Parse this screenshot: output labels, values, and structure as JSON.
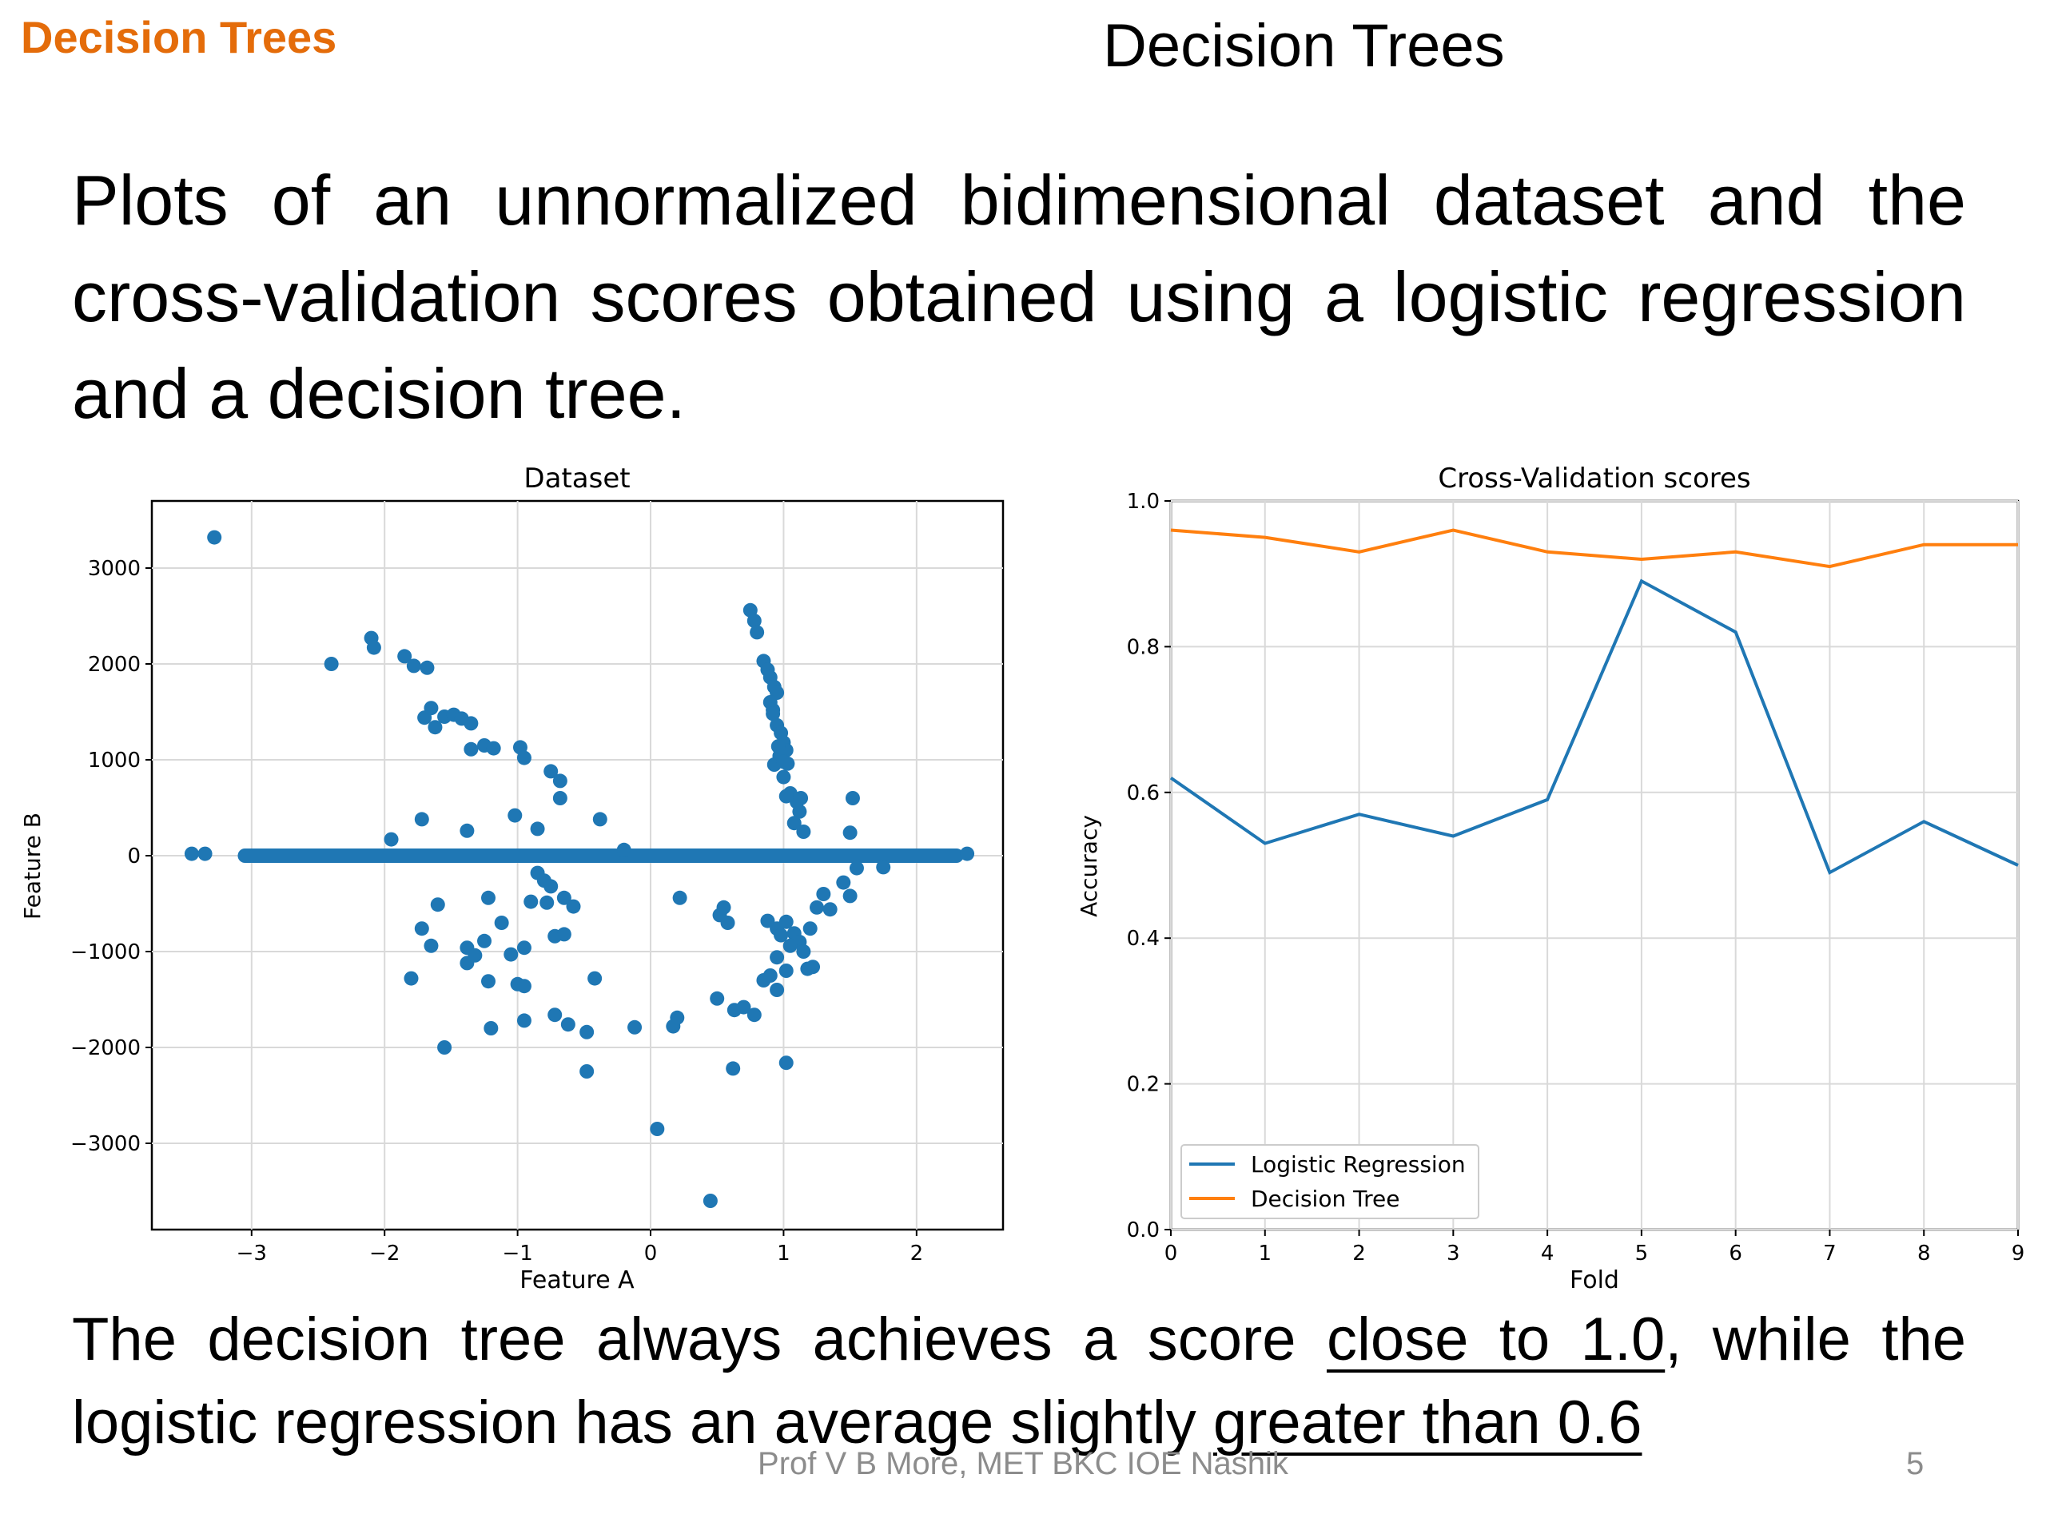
{
  "header": {
    "corner_label": "Decision Trees",
    "title": "Decision Trees"
  },
  "intro_text": "Plots of an unnormalized bidimensional dataset and the cross-validation scores obtained using a logistic regression and a decision tree.",
  "conclusion": {
    "part1": "The decision tree always achieves a score ",
    "underline1": "close to 1.0",
    "part2": ", while the logistic regression has an average slightly ",
    "underline2": "greater than 0.6"
  },
  "footer": {
    "credit": "Prof V B More, MET BKC IOE Nashik",
    "page_number": "5"
  },
  "colors": {
    "blue": "#1f77b4",
    "orange": "#ff7f0e"
  },
  "chart_data": [
    {
      "type": "scatter",
      "title": "Dataset",
      "xlabel": "Feature A",
      "ylabel": "Feature B",
      "xlim": [
        -3.75,
        2.65
      ],
      "ylim": [
        -3900,
        3700
      ],
      "xticks": [
        -3,
        -2,
        -1,
        0,
        1,
        2
      ],
      "xtick_labels": [
        "−3",
        "−2",
        "−1",
        "0",
        "1",
        "2"
      ],
      "yticks": [
        -3000,
        -2000,
        -1000,
        0,
        1000,
        2000,
        3000
      ],
      "ytick_labels": [
        "−3000",
        "−2000",
        "−1000",
        "0",
        "1000",
        "2000",
        "3000"
      ],
      "grid": true,
      "band": {
        "x_from": -3.05,
        "x_to": 2.3,
        "y": 0
      },
      "points": [
        [
          -3.28,
          3320
        ],
        [
          -2.4,
          2000
        ],
        [
          -2.1,
          2270
        ],
        [
          -2.08,
          2170
        ],
        [
          -1.85,
          2080
        ],
        [
          -1.78,
          1980
        ],
        [
          -1.68,
          1960
        ],
        [
          -1.7,
          1440
        ],
        [
          -1.65,
          1540
        ],
        [
          -1.62,
          1340
        ],
        [
          -1.55,
          1450
        ],
        [
          -1.48,
          1470
        ],
        [
          -1.42,
          1430
        ],
        [
          -1.35,
          1380
        ],
        [
          -1.35,
          1110
        ],
        [
          -1.25,
          1150
        ],
        [
          -1.18,
          1120
        ],
        [
          -0.98,
          1130
        ],
        [
          -0.95,
          1020
        ],
        [
          -0.75,
          880
        ],
        [
          -0.68,
          780
        ],
        [
          -0.68,
          600
        ],
        [
          -1.72,
          380
        ],
        [
          -1.95,
          170
        ],
        [
          -1.38,
          260
        ],
        [
          -1.02,
          420
        ],
        [
          -0.85,
          280
        ],
        [
          -0.38,
          380
        ],
        [
          -0.2,
          60
        ],
        [
          -0.85,
          -180
        ],
        [
          -0.8,
          -260
        ],
        [
          -0.75,
          -320
        ],
        [
          -0.9,
          -480
        ],
        [
          -0.78,
          -490
        ],
        [
          -0.65,
          -440
        ],
        [
          -0.58,
          -530
        ],
        [
          -1.6,
          -510
        ],
        [
          -1.72,
          -760
        ],
        [
          -1.65,
          -940
        ],
        [
          -1.38,
          -960
        ],
        [
          -1.38,
          -1120
        ],
        [
          -1.32,
          -1040
        ],
        [
          -1.22,
          -440
        ],
        [
          -1.12,
          -700
        ],
        [
          -1.05,
          -1030
        ],
        [
          -0.95,
          -960
        ],
        [
          -0.72,
          -840
        ],
        [
          -0.65,
          -820
        ],
        [
          -1.25,
          -890
        ],
        [
          -1.22,
          -1310
        ],
        [
          -1.0,
          -1340
        ],
        [
          -0.95,
          -1360
        ],
        [
          -0.42,
          -1280
        ],
        [
          -1.8,
          -1280
        ],
        [
          -1.2,
          -1800
        ],
        [
          -0.95,
          -1720
        ],
        [
          -0.72,
          -1660
        ],
        [
          -0.62,
          -1760
        ],
        [
          -0.48,
          -1840
        ],
        [
          -0.12,
          -1790
        ],
        [
          -1.55,
          -2000
        ],
        [
          -0.48,
          -2250
        ],
        [
          0.17,
          -1780
        ],
        [
          0.2,
          -1690
        ],
        [
          0.05,
          -2850
        ],
        [
          0.45,
          -3600
        ],
        [
          0.22,
          -440
        ],
        [
          0.52,
          -620
        ],
        [
          0.55,
          -540
        ],
        [
          0.58,
          -700
        ],
        [
          0.5,
          -1490
        ],
        [
          0.63,
          -1610
        ],
        [
          0.7,
          -1580
        ],
        [
          0.78,
          -1660
        ],
        [
          0.62,
          -2220
        ],
        [
          1.02,
          -2160
        ],
        [
          0.85,
          -1300
        ],
        [
          0.9,
          -1250
        ],
        [
          0.95,
          -1400
        ],
        [
          0.88,
          -680
        ],
        [
          0.95,
          -760
        ],
        [
          0.98,
          -830
        ],
        [
          1.02,
          -690
        ],
        [
          1.08,
          -810
        ],
        [
          1.12,
          -900
        ],
        [
          1.15,
          -1000
        ],
        [
          1.18,
          -1180
        ],
        [
          1.22,
          -1160
        ],
        [
          1.02,
          -1200
        ],
        [
          0.95,
          -1060
        ],
        [
          1.05,
          -940
        ],
        [
          1.2,
          -760
        ],
        [
          1.25,
          -540
        ],
        [
          1.3,
          -400
        ],
        [
          1.35,
          -560
        ],
        [
          1.45,
          -280
        ],
        [
          1.5,
          -420
        ],
        [
          1.55,
          -130
        ],
        [
          1.75,
          -120
        ],
        [
          0.75,
          2560
        ],
        [
          0.78,
          2450
        ],
        [
          0.8,
          2330
        ],
        [
          0.85,
          2030
        ],
        [
          0.88,
          1940
        ],
        [
          0.9,
          1860
        ],
        [
          0.93,
          1760
        ],
        [
          0.95,
          1700
        ],
        [
          0.9,
          1600
        ],
        [
          0.92,
          1520
        ],
        [
          0.95,
          1360
        ],
        [
          0.98,
          1280
        ],
        [
          1.0,
          1180
        ],
        [
          1.02,
          1100
        ],
        [
          0.97,
          1040
        ],
        [
          0.93,
          950
        ],
        [
          1.0,
          820
        ],
        [
          1.05,
          650
        ],
        [
          1.1,
          560
        ],
        [
          1.12,
          460
        ],
        [
          1.08,
          340
        ],
        [
          1.02,
          620
        ],
        [
          1.15,
          250
        ],
        [
          0.92,
          1480
        ],
        [
          0.96,
          1140
        ],
        [
          1.03,
          960
        ],
        [
          1.13,
          600
        ],
        [
          1.0,
          980
        ],
        [
          1.52,
          600
        ],
        [
          1.5,
          240
        ],
        [
          -3.45,
          20
        ],
        [
          -3.35,
          20
        ],
        [
          2.38,
          20
        ]
      ]
    },
    {
      "type": "line",
      "title": "Cross-Validation scores",
      "xlabel": "Fold",
      "ylabel": "Accuracy",
      "x": [
        0,
        1,
        2,
        3,
        4,
        5,
        6,
        7,
        8,
        9
      ],
      "xlim": [
        0,
        9
      ],
      "ylim": [
        0.0,
        1.0
      ],
      "xticks": [
        0,
        1,
        2,
        3,
        4,
        5,
        6,
        7,
        8,
        9
      ],
      "yticks": [
        0.0,
        0.2,
        0.4,
        0.6,
        0.8,
        1.0
      ],
      "ytick_labels": [
        "0.0",
        "0.2",
        "0.4",
        "0.6",
        "0.8",
        "1.0"
      ],
      "grid": true,
      "legend_position": "bottom-left",
      "series": [
        {
          "name": "Logistic Regression",
          "color": "#1f77b4",
          "values": [
            0.62,
            0.53,
            0.57,
            0.54,
            0.59,
            0.89,
            0.82,
            0.49,
            0.56,
            0.5
          ]
        },
        {
          "name": "Decision Tree",
          "color": "#ff7f0e",
          "values": [
            0.96,
            0.95,
            0.93,
            0.96,
            0.93,
            0.92,
            0.93,
            0.91,
            0.94,
            0.94
          ]
        }
      ]
    }
  ]
}
